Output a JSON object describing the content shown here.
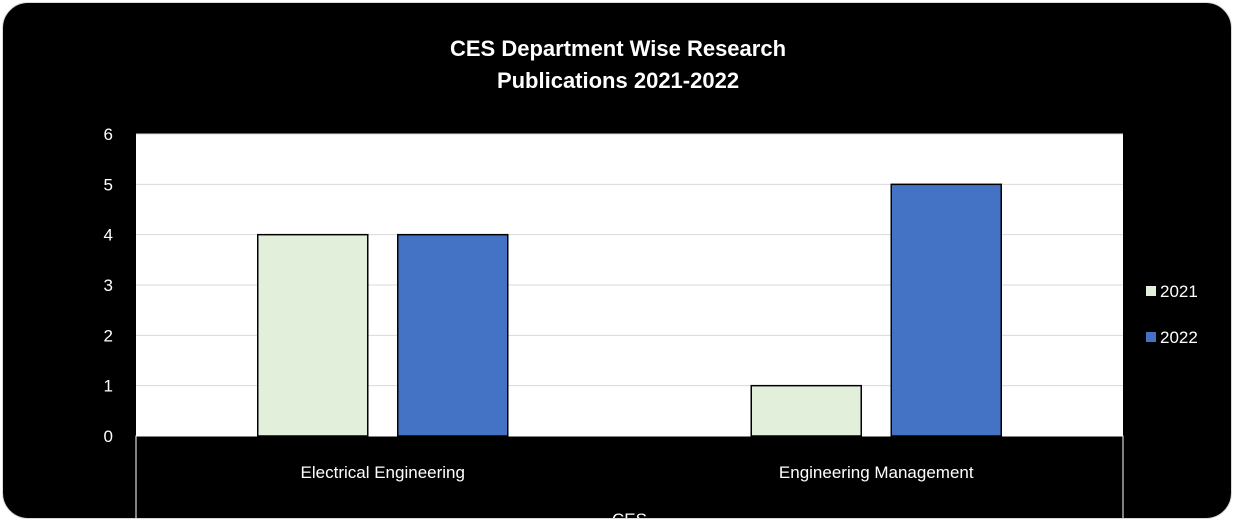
{
  "chart_data": {
    "type": "bar",
    "title_lines": [
      "CES Department Wise Research",
      "Publications 2021-2022"
    ],
    "categories": [
      "Electrical Engineering",
      "Engineering Management"
    ],
    "group_label": "CES",
    "series": [
      {
        "name": "2021",
        "values": [
          4,
          1
        ],
        "color": "#e2efda"
      },
      {
        "name": "2022",
        "values": [
          4,
          5
        ],
        "color": "#4472c4"
      }
    ],
    "ylim": [
      0,
      6
    ],
    "yticks": [
      0,
      1,
      2,
      3,
      4,
      5,
      6
    ],
    "grid": true,
    "legend_position": "right"
  }
}
